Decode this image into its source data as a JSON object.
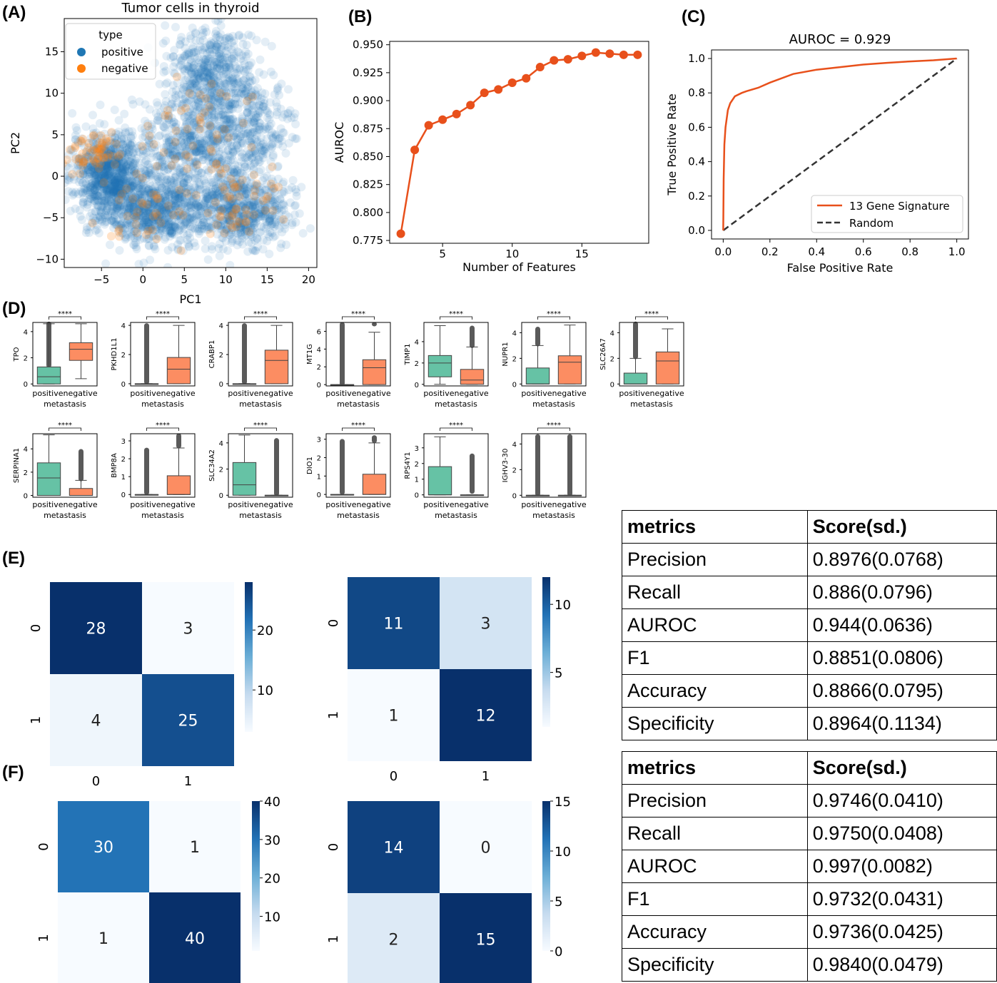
{
  "panel_letters": [
    "(A)",
    "(B)",
    "(C)",
    "(D)",
    "(E)",
    "(F)"
  ],
  "colors": {
    "positive": "#1f77b4",
    "negative": "#ff7f0e",
    "roc_line": "#e8501b",
    "box_positive": "#66c2a5",
    "box_negative": "#fc8d62",
    "heatmap_cmap": [
      "#f7fbff",
      "#c6dbef",
      "#6baed6",
      "#2171b5",
      "#08306b"
    ]
  },
  "chart_data": [
    {
      "id": "A",
      "type": "scatter",
      "title": "Tumor cells in thyroid",
      "xlabel": "PC1",
      "ylabel": "PC2",
      "xlim": [
        -9.5,
        21
      ],
      "ylim": [
        -11,
        19
      ],
      "xticks": [
        -5,
        0,
        5,
        10,
        15,
        20
      ],
      "yticks": [
        -10,
        -5,
        0,
        5,
        10,
        15
      ],
      "legend": {
        "title": "type",
        "entries": [
          "positive",
          "negative"
        ],
        "position": "upper-left"
      },
      "series": [
        {
          "name": "positive",
          "clusters": [
            {
              "x": -4,
              "y": 0,
              "sx": 2.2,
              "sy": 2.6,
              "n": 900
            },
            {
              "x": 2,
              "y": -4,
              "sx": 3,
              "sy": 2.2,
              "n": 700
            },
            {
              "x": 12,
              "y": -4,
              "sx": 2.8,
              "sy": 2.3,
              "n": 600
            },
            {
              "x": 8,
              "y": 12,
              "sx": 2.5,
              "sy": 3,
              "n": 500
            },
            {
              "x": 6,
              "y": 4,
              "sx": 3,
              "sy": 3,
              "n": 500
            },
            {
              "x": 13,
              "y": 6,
              "sx": 2.4,
              "sy": 3,
              "n": 300
            }
          ]
        },
        {
          "name": "negative",
          "clusters": [
            {
              "x": -6,
              "y": 3,
              "sx": 1.5,
              "sy": 1.5,
              "n": 60
            },
            {
              "x": 7,
              "y": 6,
              "sx": 3,
              "sy": 4,
              "n": 50
            },
            {
              "x": 12,
              "y": -3,
              "sx": 2.5,
              "sy": 2,
              "n": 50
            },
            {
              "x": 1,
              "y": -4,
              "sx": 3,
              "sy": 2,
              "n": 40
            }
          ]
        }
      ]
    },
    {
      "id": "B",
      "type": "line",
      "xlabel": "Number of Features",
      "ylabel": "AUROC",
      "xlim": [
        1.2,
        19.8
      ],
      "ylim": [
        0.7725,
        0.953
      ],
      "xticks": [
        5,
        10,
        15
      ],
      "yticks": [
        0.775,
        0.8,
        0.825,
        0.85,
        0.875,
        0.9,
        0.925,
        0.95
      ],
      "ytick_labels": [
        "0.775",
        "0.800",
        "0.825",
        "0.850",
        "0.875",
        "0.900",
        "0.925",
        "0.950"
      ],
      "x": [
        2,
        3,
        4,
        5,
        6,
        7,
        8,
        9,
        10,
        11,
        12,
        13,
        14,
        15,
        16,
        17,
        18,
        19
      ],
      "y": [
        0.781,
        0.856,
        0.878,
        0.883,
        0.888,
        0.896,
        0.907,
        0.91,
        0.916,
        0.92,
        0.93,
        0.936,
        0.937,
        0.94,
        0.943,
        0.942,
        0.941,
        0.941
      ]
    },
    {
      "id": "C",
      "type": "line",
      "title": "AUROC = 0.929",
      "xlabel": "False Positive Rate",
      "ylabel": "True Positive Rate",
      "xlim": [
        -0.05,
        1.05
      ],
      "ylim": [
        -0.05,
        1.05
      ],
      "xticks": [
        0,
        0.2,
        0.4,
        0.6,
        0.8,
        1.0
      ],
      "yticks": [
        0,
        0.2,
        0.4,
        0.6,
        0.8,
        1.0
      ],
      "tick_labels": [
        "0.0",
        "0.2",
        "0.4",
        "0.6",
        "0.8",
        "1.0"
      ],
      "legend_position": "lower-right",
      "series": [
        {
          "name": "13 Gene Signature",
          "x": [
            0,
            0.002,
            0.005,
            0.01,
            0.02,
            0.03,
            0.05,
            0.08,
            0.1,
            0.15,
            0.2,
            0.3,
            0.4,
            0.5,
            0.6,
            0.7,
            0.8,
            0.9,
            1.0
          ],
          "y": [
            0,
            0.3,
            0.5,
            0.6,
            0.7,
            0.74,
            0.78,
            0.8,
            0.81,
            0.83,
            0.86,
            0.91,
            0.935,
            0.95,
            0.965,
            0.975,
            0.983,
            0.99,
            1.0
          ]
        },
        {
          "name": "Random",
          "x": [
            0,
            1
          ],
          "y": [
            0,
            1
          ]
        }
      ]
    },
    {
      "id": "D",
      "type": "box",
      "xlabel": "metastasis",
      "categories": [
        "positive",
        "negative"
      ],
      "tick_text": "positivenegative",
      "significance": "****",
      "genes": [
        {
          "name": "TPO",
          "ymax": 4.7,
          "yticks": [
            0,
            2,
            4
          ],
          "pos": [
            0,
            0,
            0.55,
            1.3,
            4.6
          ],
          "neg": [
            0.4,
            1.8,
            2.65,
            3.15,
            4.6
          ],
          "pos_out": [
            1.4,
            4.6
          ],
          "neg_out": null
        },
        {
          "name": "PKHD1L1",
          "ymax": 4.2,
          "yticks": [
            0,
            2,
            4
          ],
          "pos": [
            0,
            0,
            0,
            0,
            0
          ],
          "neg": [
            0,
            0,
            1.0,
            1.8,
            4.0
          ],
          "pos_out": [
            0.1,
            4.0
          ],
          "neg_out": null
        },
        {
          "name": "CRABP1",
          "ymax": 4.2,
          "yticks": [
            0,
            2,
            4
          ],
          "pos": [
            0,
            0,
            0,
            0,
            0
          ],
          "neg": [
            0,
            0,
            1.6,
            2.3,
            4.0
          ],
          "pos_out": [
            0.1,
            4.0
          ],
          "neg_out": null
        },
        {
          "name": "MT1G",
          "ymax": 7,
          "yticks": [
            0,
            2,
            4,
            6
          ],
          "pos": [
            0,
            0,
            0,
            0,
            0
          ],
          "neg": [
            0,
            0,
            1.9,
            2.8,
            5.9
          ],
          "pos_out": [
            0.1,
            6.8
          ],
          "neg_out": [
            6.8,
            6.8
          ]
        },
        {
          "name": "TIMP1",
          "ymax": 5.8,
          "yticks": [
            0,
            2,
            4
          ],
          "pos": [
            0,
            0.7,
            2.0,
            2.7,
            5.5
          ],
          "neg": [
            0,
            0,
            0.4,
            1.4,
            3.5
          ],
          "pos_out": null,
          "neg_out": [
            3.6,
            5.3
          ]
        },
        {
          "name": "NUPR1",
          "ymax": 4.8,
          "yticks": [
            0,
            2,
            4
          ],
          "pos": [
            0,
            0,
            0,
            1.25,
            3.0
          ],
          "neg": [
            0,
            0,
            1.7,
            2.2,
            4.6
          ],
          "pos_out": [
            3.1,
            4.3
          ],
          "neg_out": null
        },
        {
          "name": "SLC26A7",
          "ymax": 4.8,
          "yticks": [
            0,
            2,
            4
          ],
          "pos": [
            0,
            0,
            0,
            0.85,
            2.0
          ],
          "neg": [
            0,
            0,
            1.8,
            2.5,
            4.3
          ],
          "pos_out": [
            2.1,
            4.7
          ],
          "neg_out": null
        },
        {
          "name": "SERPINA1",
          "ymax": 5.3,
          "yticks": [
            0,
            2,
            4
          ],
          "pos": [
            0,
            0,
            1.5,
            2.8,
            5.2
          ],
          "neg": [
            0,
            0,
            0,
            0.6,
            1.3
          ],
          "pos_out": null,
          "neg_out": [
            1.4,
            3.8
          ]
        },
        {
          "name": "BMP8A",
          "ymax": 3.4,
          "yticks": [
            0,
            1,
            2,
            3
          ],
          "pos": [
            0,
            0,
            0,
            0,
            0
          ],
          "neg": [
            0,
            0,
            0,
            1.05,
            2.6
          ],
          "pos_out": [
            0.1,
            2.5
          ],
          "neg_out": [
            2.7,
            3.3
          ]
        },
        {
          "name": "SLC34A2",
          "ymax": 4.7,
          "yticks": [
            0,
            2,
            4
          ],
          "pos": [
            0,
            0,
            0.8,
            2.5,
            4.6
          ],
          "neg": [
            0,
            0,
            0,
            0,
            0
          ],
          "pos_out": null,
          "neg_out": [
            0.1,
            4.2
          ]
        },
        {
          "name": "DIO1",
          "ymax": 3.3,
          "yticks": [
            0,
            1,
            2,
            3
          ],
          "pos": [
            0,
            0,
            0,
            0,
            0
          ],
          "neg": [
            0,
            0,
            0,
            1.1,
            2.8
          ],
          "pos_out": [
            0.1,
            2.9
          ],
          "neg_out": [
            2.9,
            3.1
          ]
        },
        {
          "name": "RPS4Y1",
          "ymax": 3.9,
          "yticks": [
            0,
            1,
            2,
            3
          ],
          "pos": [
            0,
            0,
            0,
            1.8,
            3.7
          ],
          "neg": [
            0,
            0,
            0,
            0,
            0
          ],
          "pos_out": null,
          "neg_out": [
            0.2,
            2.5
          ]
        },
        {
          "name": "IGHV3-30",
          "ymax": 4.8,
          "yticks": [
            0,
            2,
            4
          ],
          "pos": [
            0,
            0,
            0,
            0,
            0
          ],
          "neg": [
            0,
            0,
            0,
            0,
            0
          ],
          "pos_out": [
            0.1,
            4.6
          ],
          "neg_out": [
            0.1,
            4.6
          ]
        }
      ]
    },
    {
      "id": "E1",
      "type": "heatmap",
      "rows": [
        "0",
        "1"
      ],
      "cols": [
        "0",
        "1"
      ],
      "values": [
        [
          28,
          3
        ],
        [
          4,
          25
        ]
      ],
      "vmin": 3,
      "vmax": 28,
      "colorbar_ticks": [
        10,
        20
      ]
    },
    {
      "id": "E2",
      "type": "heatmap",
      "rows": [
        "0",
        "1"
      ],
      "cols": [
        "0",
        "1"
      ],
      "values": [
        [
          11,
          3
        ],
        [
          1,
          12
        ]
      ],
      "vmin": 1,
      "vmax": 12,
      "colorbar_ticks": [
        5,
        10
      ]
    },
    {
      "id": "F1",
      "type": "heatmap",
      "rows": [
        "0",
        "1"
      ],
      "cols": [
        "0",
        "1"
      ],
      "values": [
        [
          30,
          1
        ],
        [
          1,
          40
        ]
      ],
      "vmin": 1,
      "vmax": 40,
      "colorbar_ticks": [
        10,
        20,
        30,
        40
      ]
    },
    {
      "id": "F2",
      "type": "heatmap",
      "rows": [
        "0",
        "1"
      ],
      "cols": [
        "0",
        "1"
      ],
      "values": [
        [
          14,
          0
        ],
        [
          2,
          15
        ]
      ],
      "vmin": 0,
      "vmax": 15,
      "colorbar_ticks": [
        0,
        5,
        10,
        15
      ]
    }
  ],
  "tables": [
    {
      "header": [
        "metrics",
        "Score(sd.)"
      ],
      "rows": [
        [
          "Precision",
          "0.8976(0.0768)"
        ],
        [
          "Recall",
          "0.886(0.0796)"
        ],
        [
          "AUROC",
          "0.944(0.0636)"
        ],
        [
          "F1",
          "0.8851(0.0806)"
        ],
        [
          "Accuracy",
          "0.8866(0.0795)"
        ],
        [
          "Specificity",
          "0.8964(0.1134)"
        ]
      ]
    },
    {
      "header": [
        "metrics",
        "Score(sd.)"
      ],
      "rows": [
        [
          "Precision",
          "0.9746(0.0410)"
        ],
        [
          "Recall",
          "0.9750(0.0408)"
        ],
        [
          "AUROC",
          "0.997(0.0082)"
        ],
        [
          "F1",
          "0.9732(0.0431)"
        ],
        [
          "Accuracy",
          "0.9736(0.0425)"
        ],
        [
          "Specificity",
          "0.9840(0.0479)"
        ]
      ]
    }
  ]
}
